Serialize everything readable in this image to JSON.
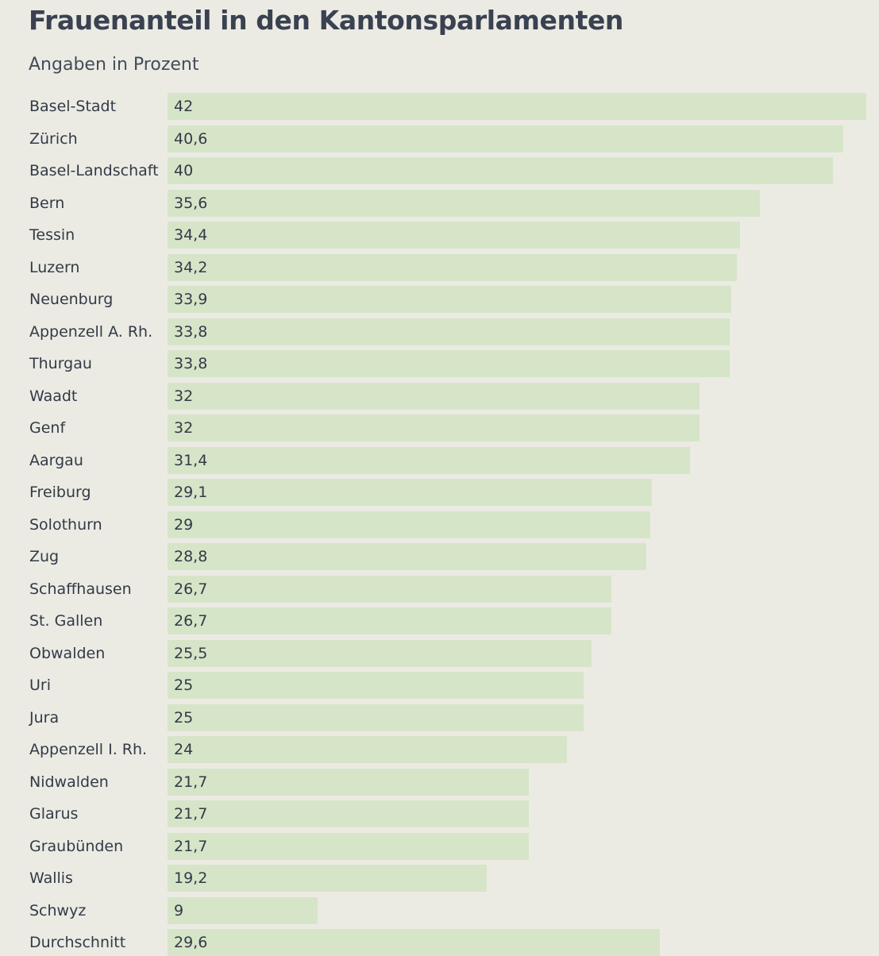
{
  "chart_data": {
    "type": "bar",
    "orientation": "horizontal",
    "title": "Frauenanteil in den Kantonsparlamenten",
    "subtitle": "Angaben in Prozent",
    "categories": [
      "Basel-Stadt",
      "Zürich",
      "Basel-Landschaft",
      "Bern",
      "Tessin",
      "Luzern",
      "Neuenburg",
      "Appenzell A. Rh.",
      "Thurgau",
      "Waadt",
      "Genf",
      "Aargau",
      "Freiburg",
      "Solothurn",
      "Zug",
      "Schaffhausen",
      "St. Gallen",
      "Obwalden",
      "Uri",
      "Jura",
      "Appenzell I. Rh.",
      "Nidwalden",
      "Glarus",
      "Graubünden",
      "Wallis",
      "Schwyz",
      "Durchschnitt"
    ],
    "values": [
      42,
      40.6,
      40,
      35.6,
      34.4,
      34.2,
      33.9,
      33.8,
      33.8,
      32,
      32,
      31.4,
      29.1,
      29,
      28.8,
      26.7,
      26.7,
      25.5,
      25,
      25,
      24,
      21.7,
      21.7,
      21.7,
      19.2,
      9,
      29.6
    ],
    "value_labels": [
      "42",
      "40,6",
      "40",
      "35,6",
      "34,4",
      "34,2",
      "33,9",
      "33,8",
      "33,8",
      "32",
      "32",
      "31,4",
      "29,1",
      "29",
      "28,8",
      "26,7",
      "26,7",
      "25,5",
      "25",
      "25",
      "24",
      "21,7",
      "21,7",
      "21,7",
      "19,2",
      "9",
      "29,6"
    ],
    "xlim": [
      0,
      42
    ],
    "bar_color": "#d6e5c8",
    "grid": false,
    "legend": "none"
  }
}
